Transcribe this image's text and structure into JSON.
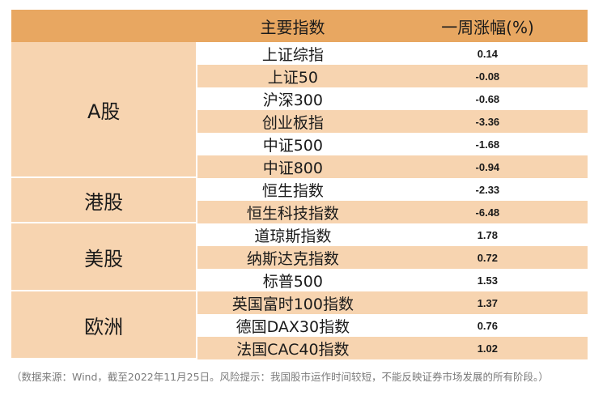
{
  "header": {
    "col1": "主要指数",
    "col2": "一周涨幅(%)"
  },
  "groups": [
    {
      "label": "A股",
      "rows": [
        {
          "name": "上证综指",
          "value": "0.14"
        },
        {
          "name": "上证50",
          "value": "-0.08"
        },
        {
          "name": "沪深300",
          "value": "-0.68"
        },
        {
          "name": "创业板指",
          "value": "-3.36"
        },
        {
          "name": "中证500",
          "value": "-1.68"
        },
        {
          "name": "中证800",
          "value": "-0.94"
        }
      ]
    },
    {
      "label": "港股",
      "rows": [
        {
          "name": "恒生指数",
          "value": "-2.33"
        },
        {
          "name": "恒生科技指数",
          "value": "-6.48"
        }
      ]
    },
    {
      "label": "美股",
      "rows": [
        {
          "name": "道琼斯指数",
          "value": "1.78"
        },
        {
          "name": "纳斯达克指数",
          "value": "0.72"
        },
        {
          "name": "标普500",
          "value": "1.53"
        }
      ]
    },
    {
      "label": "欧洲",
      "rows": [
        {
          "name": "英国富时100指数",
          "value": "1.37"
        },
        {
          "name": "德国DAX30指数",
          "value": "0.76"
        },
        {
          "name": "法国CAC40指数",
          "value": "1.02"
        }
      ]
    }
  ],
  "note": "（数据来源：Wind，截至2022年11月25日。风险提示：我国股市运作时间较短，不能反映证券市场发展的所有阶段。）"
}
